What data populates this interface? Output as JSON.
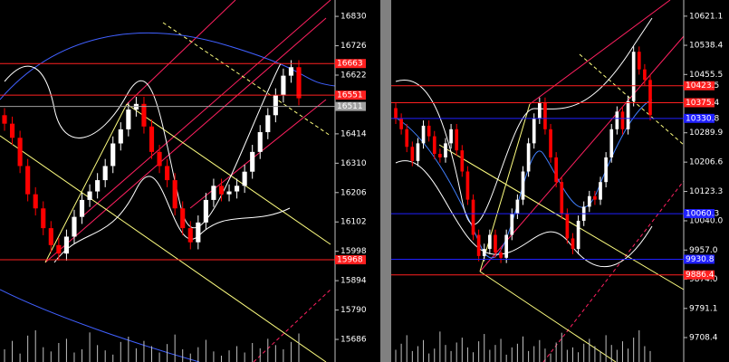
{
  "chart_data": [
    {
      "type": "candlestick",
      "up_color": "#ffffff",
      "down_color": "#ff0000",
      "ylim": [
        15606,
        16888
      ],
      "yticks": [
        16830,
        16726,
        16622,
        16414,
        16310,
        16206,
        16102,
        15998,
        15894,
        15790,
        15686
      ],
      "levels": [
        {
          "value": 16663,
          "color": "#ff2020"
        },
        {
          "value": 16551,
          "color": "#ff2020"
        },
        {
          "value": 16511,
          "color": "#a0a0a0"
        },
        {
          "value": 15968,
          "color": "#ff2020"
        }
      ],
      "open": [
        16480,
        16450,
        16400,
        16300,
        16200,
        16150,
        16080,
        16020,
        15990,
        16050,
        16120,
        16180,
        16210,
        16250,
        16300,
        16380,
        16430,
        16500,
        16520,
        16440,
        16350,
        16300,
        16250,
        16150,
        16080,
        16030,
        16100,
        16180,
        16230,
        16200,
        16210,
        16230,
        16280,
        16350,
        16420,
        16480,
        16550,
        16620,
        16650
      ],
      "high": [
        16505,
        16475,
        16425,
        16325,
        16225,
        16175,
        16105,
        16045,
        16075,
        16145,
        16205,
        16235,
        16275,
        16325,
        16405,
        16455,
        16525,
        16545,
        16545,
        16465,
        16375,
        16325,
        16275,
        16175,
        16105,
        16125,
        16205,
        16255,
        16255,
        16235,
        16255,
        16305,
        16375,
        16445,
        16505,
        16575,
        16645,
        16675,
        16675
      ],
      "low": [
        16425,
        16375,
        16275,
        16175,
        16125,
        16055,
        15995,
        15965,
        15965,
        16025,
        16095,
        16155,
        16185,
        16225,
        16275,
        16355,
        16405,
        16475,
        16415,
        16325,
        16275,
        16225,
        16125,
        16055,
        16005,
        16005,
        16075,
        16155,
        16175,
        16175,
        16185,
        16205,
        16255,
        16325,
        16395,
        16455,
        16525,
        16595,
        16515
      ],
      "close": [
        16450,
        16400,
        16300,
        16200,
        16150,
        16080,
        16020,
        15990,
        16050,
        16120,
        16180,
        16210,
        16250,
        16300,
        16380,
        16430,
        16500,
        16520,
        16440,
        16350,
        16300,
        16250,
        16150,
        16080,
        16030,
        16100,
        16180,
        16230,
        16200,
        16210,
        16230,
        16280,
        16350,
        16420,
        16480,
        16550,
        16620,
        16650,
        16540
      ],
      "volume": [
        12,
        20,
        8,
        25,
        30,
        14,
        10,
        18,
        22,
        9,
        12,
        28,
        16,
        11,
        7,
        19,
        24,
        13,
        20,
        15,
        9,
        17,
        26,
        12,
        8,
        14,
        21,
        10,
        6,
        11,
        15,
        9,
        18,
        13,
        22,
        16,
        12,
        19,
        27
      ]
    },
    {
      "type": "candlestick",
      "up_color": "#ffffff",
      "down_color": "#ff0000",
      "ylim": [
        9639,
        10667
      ],
      "yticks": [
        10621.1,
        10538.4,
        10455.5,
        10289.9,
        10206.6,
        10123.3,
        {
          "value": 10040,
          "label": "10040.0"
        },
        {
          "value": 9957,
          "label": "9957.0"
        },
        {
          "value": 9874,
          "label": "9874.0"
        },
        9791.1,
        9708.4
      ],
      "levels": [
        {
          "value": 10423.5,
          "color": "#ff2020"
        },
        {
          "value": 10375.4,
          "color": "#ff2020"
        },
        {
          "value": 10330.8,
          "color": "#2020ff"
        },
        {
          "value": 10060.3,
          "color": "#2020ff"
        },
        {
          "value": 9930.8,
          "color": "#2020ff"
        },
        {
          "value": 9886.4,
          "color": "#ff2020"
        }
      ],
      "open": [
        10360,
        10330,
        10300,
        10250,
        10210,
        10260,
        10310,
        10280,
        10230,
        10220,
        10260,
        10300,
        10240,
        10180,
        10100,
        10000,
        9940,
        9960,
        10000,
        9950,
        9935,
        10000,
        10060,
        10100,
        10180,
        10260,
        10330,
        10375,
        10300,
        10220,
        10150,
        10060,
        9990,
        9960,
        10040,
        10080,
        10110,
        10100,
        10150,
        10220,
        10300,
        10350,
        10300,
        10380,
        10520,
        10470,
        10440
      ],
      "high": [
        10375,
        10345,
        10315,
        10265,
        10275,
        10325,
        10325,
        10295,
        10245,
        10275,
        10315,
        10315,
        10255,
        10195,
        10115,
        10015,
        9975,
        10015,
        10015,
        9965,
        10015,
        10075,
        10115,
        10195,
        10275,
        10345,
        10390,
        10390,
        10315,
        10235,
        10165,
        10075,
        10005,
        10055,
        10095,
        10125,
        10125,
        10165,
        10235,
        10315,
        10365,
        10365,
        10395,
        10535,
        10535,
        10485,
        10455
      ],
      "low": [
        10315,
        10285,
        10235,
        10195,
        10195,
        10245,
        10265,
        10215,
        10205,
        10205,
        10245,
        10225,
        10165,
        10085,
        9985,
        9925,
        9925,
        9945,
        9935,
        9920,
        9920,
        9985,
        10045,
        10085,
        10165,
        10245,
        10315,
        10285,
        10205,
        10135,
        10045,
        9975,
        9945,
        9945,
        10025,
        10065,
        10085,
        10085,
        10135,
        10205,
        10285,
        10285,
        10285,
        10365,
        10455,
        10425,
        10325
      ],
      "close": [
        10330,
        10300,
        10250,
        10210,
        10260,
        10310,
        10280,
        10230,
        10220,
        10260,
        10300,
        10240,
        10180,
        10100,
        10000,
        9940,
        9960,
        10000,
        9950,
        9935,
        10000,
        10060,
        10100,
        10180,
        10260,
        10330,
        10375,
        10300,
        10220,
        10150,
        10060,
        9990,
        9960,
        10040,
        10080,
        10110,
        10100,
        10150,
        10220,
        10300,
        10350,
        10300,
        10380,
        10520,
        10470,
        10440,
        10340
      ],
      "volume": [
        10,
        15,
        22,
        9,
        13,
        18,
        7,
        11,
        25,
        14,
        9,
        16,
        20,
        12,
        8,
        17,
        23,
        10,
        14,
        19,
        6,
        12,
        15,
        21,
        9,
        13,
        18,
        11,
        7,
        16,
        24,
        10,
        12,
        8,
        15,
        19,
        13,
        9,
        22,
        14,
        10,
        17,
        11,
        20,
        26,
        13,
        9
      ]
    }
  ]
}
